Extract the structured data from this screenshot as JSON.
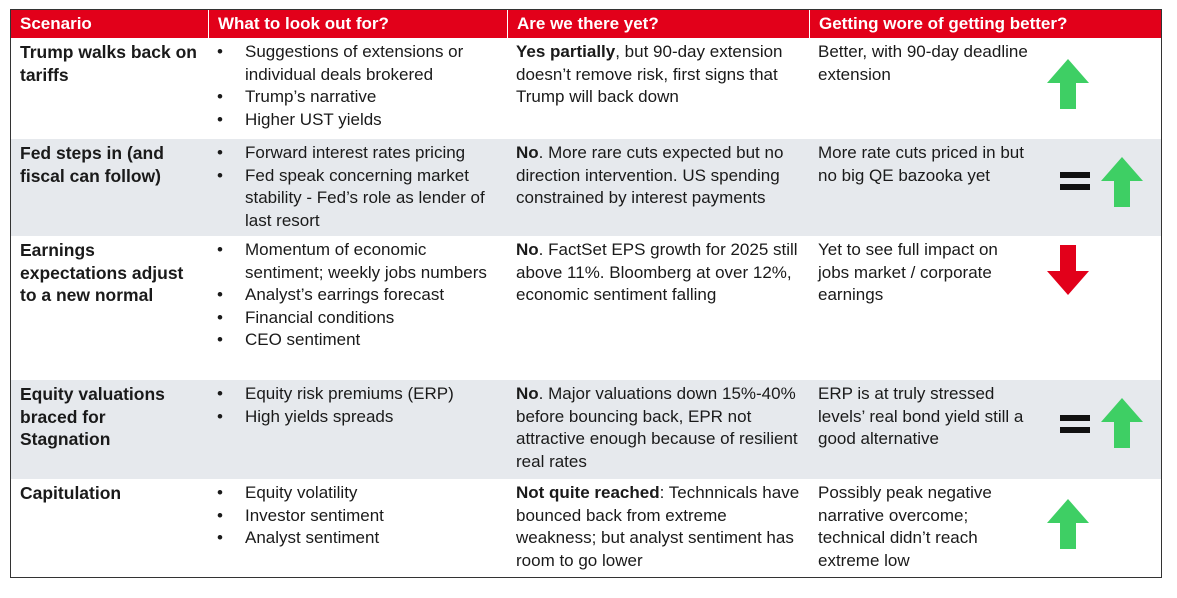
{
  "colors": {
    "header_bg": "#e2001a",
    "shade_bg": "#e6e9ed",
    "up_arrow": "#3ecf64",
    "down_arrow": "#e2001a"
  },
  "headers": [
    "Scenario",
    "What to look out for?",
    "Are we there yet?",
    "Getting wore of getting better?"
  ],
  "rows": [
    {
      "scenario": "Trump walks back on tariffs",
      "watch": [
        "Suggestions of extensions or individual deals brokered",
        "Trump’s narrative",
        "Higher UST yields"
      ],
      "status_bold": "Yes partially",
      "status_rest": ", but 90-day extension doesn’t remove risk, first signs that Trump will back down",
      "trend_text": "Better, with 90-day deadline extension",
      "trend_icons": [
        "up-arrow-icon"
      ]
    },
    {
      "scenario": "Fed steps in (and fiscal can follow)",
      "watch": [
        "Forward interest rates pricing",
        "Fed speak concerning market stability - Fed’s role as lender of last resort"
      ],
      "status_bold": "No",
      "status_rest": ". More rare cuts expected but no direction intervention. US spending constrained by interest payments",
      "trend_text": "More rate cuts priced in but no big QE bazooka yet",
      "trend_icons": [
        "equals-icon",
        "up-arrow-icon"
      ]
    },
    {
      "scenario": "Earnings expectations adjust to a new normal",
      "watch": [
        "Momentum of economic sentiment; weekly jobs numbers",
        "Analyst’s earrings forecast",
        "Financial conditions",
        "CEO sentiment"
      ],
      "status_bold": "No",
      "status_rest": ". FactSet EPS growth for 2025 still above 11%. Bloomberg at over 12%, economic sentiment falling",
      "trend_text": "Yet to see full impact on jobs market / corporate earnings",
      "trend_icons": [
        "down-arrow-icon"
      ]
    },
    {
      "scenario": "Equity valuations braced for Stagnation",
      "watch": [
        "Equity risk premiums (ERP)",
        "High yields spreads"
      ],
      "status_bold": "No",
      "status_rest": ". Major valuations down 15%-40% before bouncing back, EPR not attractive enough because of resilient real rates",
      "trend_text": "ERP is at truly stressed levels’ real bond yield still a good alternative",
      "trend_icons": [
        "equals-icon",
        "up-arrow-icon"
      ]
    },
    {
      "scenario": "Capitulation",
      "watch": [
        "Equity volatility",
        "Investor sentiment",
        "Analyst sentiment"
      ],
      "status_bold": "Not quite reached",
      "status_rest": ": Technnicals have bounced back from extreme weakness; but analyst sentiment has room to go lower",
      "trend_text": "Possibly peak negative narrative overcome; technical didn’t reach extreme low",
      "trend_icons": [
        "up-arrow-icon"
      ]
    }
  ]
}
